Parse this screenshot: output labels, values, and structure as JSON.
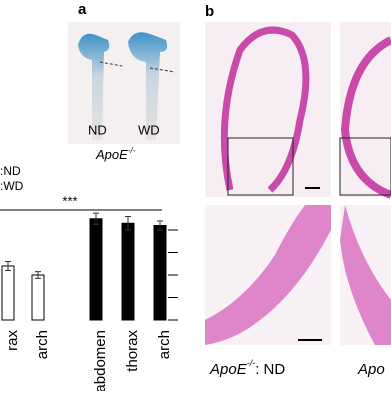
{
  "panel_a": {
    "label": "a",
    "image_labels": [
      "ND",
      "WD"
    ],
    "caption": {
      "gene": "ApoE",
      "sup": "-/-"
    }
  },
  "chart_data": {
    "type": "bar",
    "significance": "***",
    "categories": [
      "rax",
      "arch",
      "abdomen",
      "thorax",
      "arch"
    ],
    "series": [
      {
        "name": ":ND",
        "color": "#ffffff",
        "values": [
          2.4,
          2.0,
          null,
          null,
          null
        ],
        "errors": [
          0.2,
          0.15,
          null,
          null,
          null
        ]
      },
      {
        "name": ":WD",
        "color": "#000000",
        "values": [
          null,
          null,
          4.5,
          4.3,
          4.2
        ],
        "errors": [
          null,
          null,
          0.25,
          0.3,
          0.2
        ]
      }
    ],
    "ylim": [
      0,
      5
    ],
    "yticks": [
      0,
      1,
      2,
      3,
      4
    ]
  },
  "panel_b": {
    "label": "b",
    "captions": [
      {
        "gene": "ApoE",
        "sup": "-/-",
        "suffix": ": ND"
      },
      {
        "gene": "Apo"
      }
    ]
  }
}
